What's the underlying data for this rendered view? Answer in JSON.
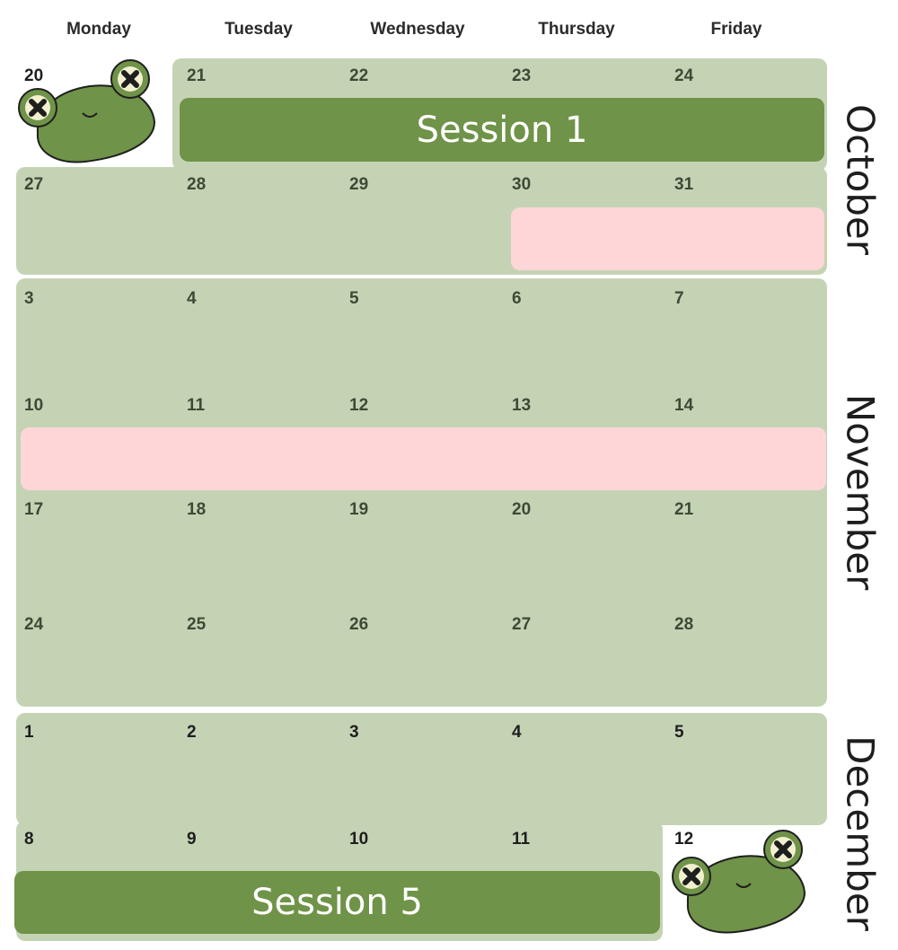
{
  "weekdays": [
    "Monday",
    "Tuesday",
    "Wednesday",
    "Thursday",
    "Friday"
  ],
  "months": {
    "october": "October",
    "november": "November",
    "december": "December"
  },
  "sessions": {
    "session1": "Session 1",
    "session5": "Session 5"
  },
  "days": {
    "w1": [
      "20",
      "21",
      "22",
      "23",
      "24"
    ],
    "w2": [
      "27",
      "28",
      "29",
      "30",
      "31"
    ],
    "w3": [
      "3",
      "4",
      "5",
      "6",
      "7"
    ],
    "w4": [
      "10",
      "11",
      "12",
      "13",
      "14"
    ],
    "w5": [
      "17",
      "18",
      "19",
      "20",
      "21"
    ],
    "w6": [
      "24",
      "25",
      "26",
      "27",
      "28"
    ],
    "w7": [
      "1",
      "2",
      "3",
      "4",
      "5"
    ],
    "w8": [
      "8",
      "9",
      "10",
      "11",
      "12"
    ]
  },
  "colors": {
    "cell_bg": "#c5d3b5",
    "session_bar": "#6f9348",
    "holiday_bar": "#ffd6d8",
    "frog_body": "#6f9348",
    "frog_eye": "#f3f0d0"
  },
  "icons": [
    "frog-icon",
    "frog-icon"
  ]
}
